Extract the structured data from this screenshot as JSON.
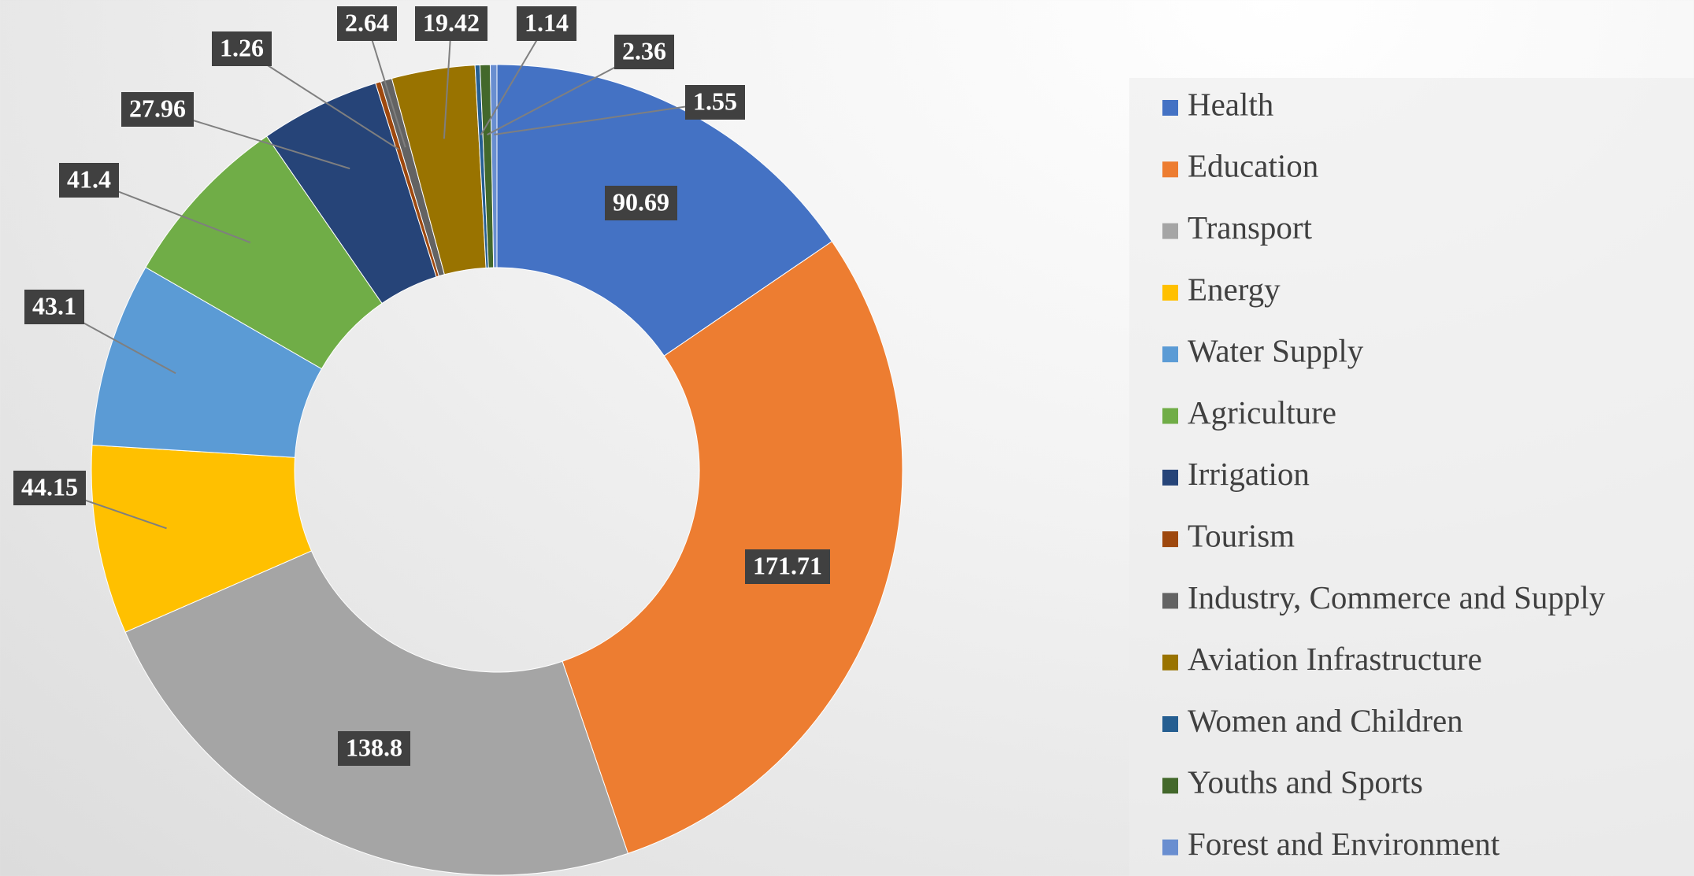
{
  "chart_data": {
    "type": "donut",
    "categories": [
      "Health",
      "Education",
      "Transport",
      "Energy",
      "Water Supply",
      "Agriculture",
      "Irrigation",
      "Tourism",
      "Industry, Commerce and Supply",
      "Aviation Infrastructure",
      "Women and Children",
      "Youths and Sports",
      "Forest and Environment"
    ],
    "values": [
      90.69,
      171.71,
      138.8,
      44.15,
      43.1,
      41.4,
      27.96,
      1.26,
      2.64,
      19.42,
      1.14,
      2.36,
      1.55
    ],
    "colors": [
      "#4472c4",
      "#ed7d31",
      "#a5a5a5",
      "#ffc000",
      "#5b9bd5",
      "#70ad47",
      "#264478",
      "#9e480e",
      "#636363",
      "#997300",
      "#255e91",
      "#43682b",
      "#698ed0"
    ],
    "legend": "right"
  }
}
